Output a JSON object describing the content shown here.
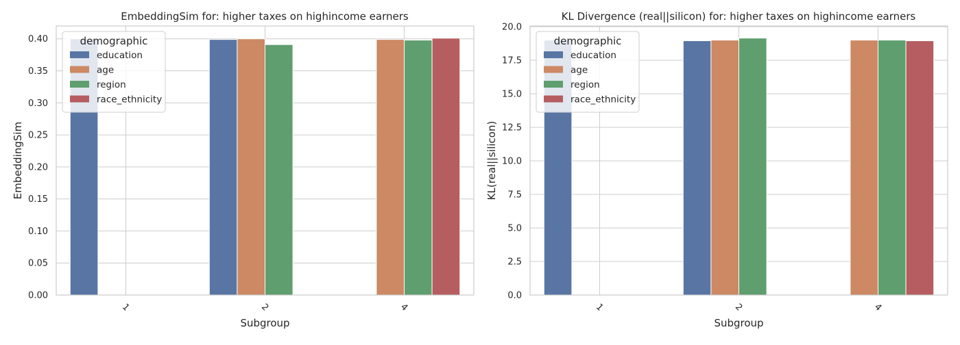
{
  "chart_data": [
    {
      "type": "bar",
      "title": "EmbeddingSim for: higher taxes on highincome earners",
      "xlabel": "Subgroup",
      "ylabel": "EmbeddingSim",
      "ylim": [
        0,
        0.42
      ],
      "yticks": [
        "0.00",
        "0.05",
        "0.10",
        "0.15",
        "0.20",
        "0.25",
        "0.30",
        "0.35",
        "0.40"
      ],
      "categories": [
        "1",
        "2",
        "4"
      ],
      "grid": true,
      "legend": {
        "title": "demographic",
        "position": "top-left"
      },
      "series": [
        {
          "name": "education",
          "color": "#5875a4",
          "values": [
            0.4,
            0.399,
            null
          ]
        },
        {
          "name": "age",
          "color": "#cc8963",
          "values": [
            null,
            0.4,
            0.399
          ]
        },
        {
          "name": "region",
          "color": "#5f9e6e",
          "values": [
            null,
            0.391,
            0.398
          ]
        },
        {
          "name": "race_ethnicity",
          "color": "#b55d60",
          "values": [
            null,
            null,
            0.401
          ]
        }
      ]
    },
    {
      "type": "bar",
      "title": "KL Divergence (real||silicon) for: higher taxes on highincome earners",
      "xlabel": "Subgroup",
      "ylabel": "KL(real||silicon)",
      "ylim": [
        0,
        20.05
      ],
      "yticks": [
        "0.0",
        "2.5",
        "5.0",
        "7.5",
        "10.0",
        "12.5",
        "15.0",
        "17.5",
        "20.0"
      ],
      "categories": [
        "1",
        "2",
        "4"
      ],
      "grid": true,
      "legend": {
        "title": "demographic",
        "position": "top-left"
      },
      "series": [
        {
          "name": "education",
          "color": "#5875a4",
          "values": [
            19.0,
            18.95,
            null
          ]
        },
        {
          "name": "age",
          "color": "#cc8963",
          "values": [
            null,
            19.0,
            19.0
          ]
        },
        {
          "name": "region",
          "color": "#5f9e6e",
          "values": [
            null,
            19.15,
            19.0
          ]
        },
        {
          "name": "race_ethnicity",
          "color": "#b55d60",
          "values": [
            null,
            null,
            18.95
          ]
        }
      ]
    }
  ]
}
